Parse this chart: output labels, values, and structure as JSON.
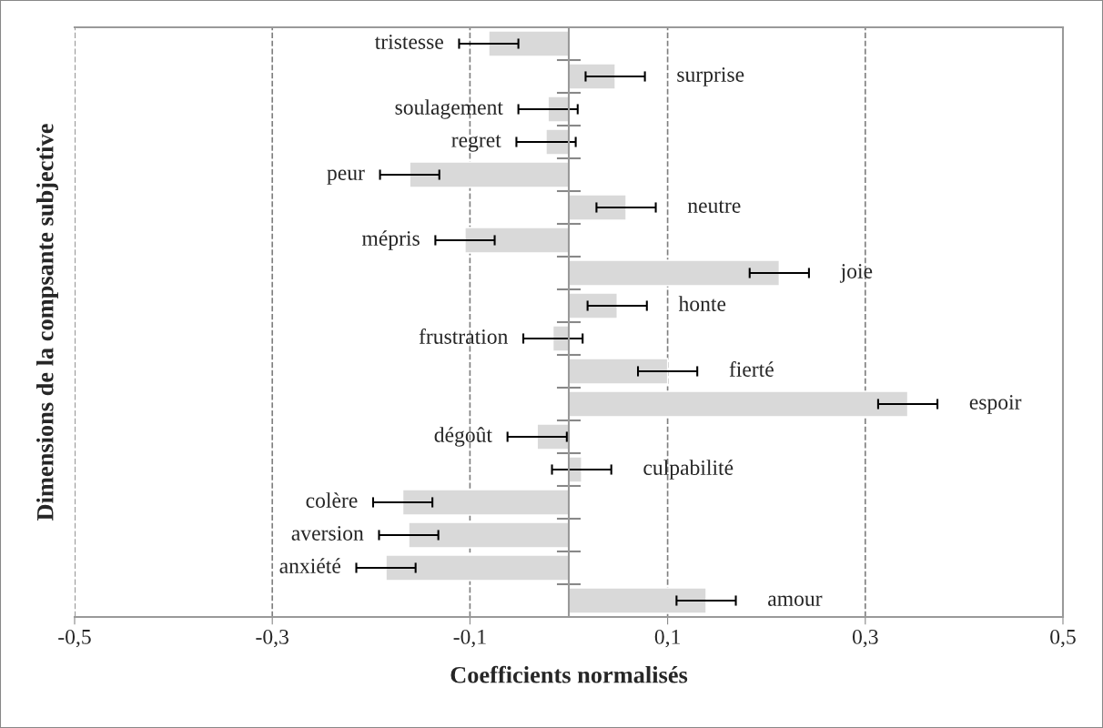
{
  "chart_data": {
    "type": "bar",
    "orientation": "horizontal",
    "xlabel": "Coefficients normalisés",
    "ylabel": "Dimensions de la compsante subjective",
    "categories": [
      "tristesse",
      "surprise",
      "soulagement",
      "regret",
      "peur",
      "neutre",
      "mépris",
      "joie",
      "honte",
      "frustration",
      "fierté",
      "espoir",
      "dégoût",
      "culpabilité",
      "colère",
      "aversion",
      "anxiété",
      "amour"
    ],
    "values": [
      -0.081,
      0.047,
      -0.021,
      -0.023,
      -0.161,
      0.058,
      -0.105,
      0.213,
      0.049,
      -0.016,
      0.1,
      0.343,
      -0.032,
      0.013,
      -0.168,
      -0.162,
      -0.185,
      0.139
    ],
    "errors": [
      0.03,
      0.03,
      0.03,
      0.03,
      0.03,
      0.03,
      0.03,
      0.03,
      0.03,
      0.03,
      0.03,
      0.03,
      0.03,
      0.03,
      0.03,
      0.03,
      0.03,
      0.03
    ],
    "color": "#d9d9d9",
    "xlim": [
      -0.5,
      0.5
    ],
    "xticks": [
      {
        "value": -0.5,
        "label": "-0,5"
      },
      {
        "value": -0.3,
        "label": "-0,3"
      },
      {
        "value": -0.1,
        "label": "-0,1"
      },
      {
        "value": 0.1,
        "label": "0,1"
      },
      {
        "value": 0.3,
        "label": "0,3"
      },
      {
        "value": 0.5,
        "label": "0,5"
      }
    ],
    "grid": "x",
    "line_style": "dashed"
  }
}
